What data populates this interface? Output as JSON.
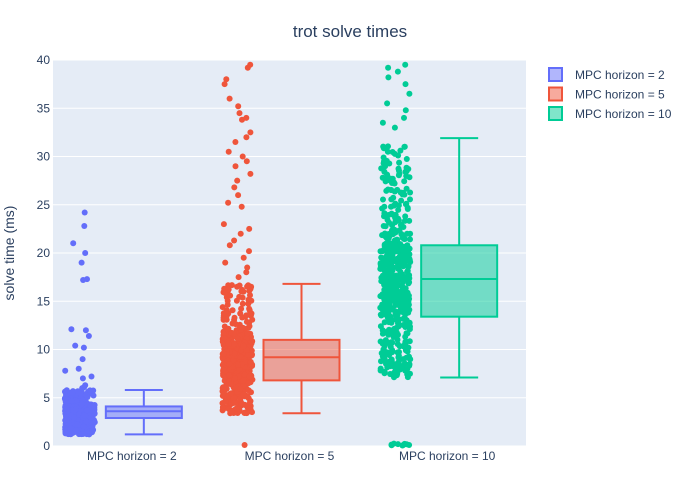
{
  "chart_data": {
    "type": "box",
    "title": "trot solve times",
    "xlabel": "",
    "ylabel": "solve time (ms)",
    "ylim": [
      0,
      40
    ],
    "yticks": [
      0,
      5,
      10,
      15,
      20,
      25,
      30,
      35,
      40
    ],
    "categories": [
      "MPC horizon = 2",
      "MPC horizon = 5",
      "MPC horizon = 10"
    ],
    "grid": true,
    "legend_position": "top-right",
    "background_color": "#e5ecf6",
    "series": [
      {
        "name": "MPC horizon = 2",
        "color": "#636efa",
        "box": {
          "lower_fence": 1.2,
          "q1": 2.9,
          "median": 3.6,
          "q3": 4.1,
          "upper_fence": 5.8
        },
        "outliers": [
          6.0,
          6.1,
          6.3,
          7.0,
          7.2,
          7.8,
          8.0,
          9.0,
          10.2,
          10.4,
          11.4,
          12.0,
          12.1,
          17.2,
          17.3,
          19.0,
          20.0,
          21.0,
          22.8,
          24.2
        ],
        "points_range": [
          1.2,
          5.8
        ],
        "point_count": 420
      },
      {
        "name": "MPC horizon = 5",
        "color": "#ef553b",
        "box": {
          "lower_fence": 3.4,
          "q1": 6.8,
          "median": 9.2,
          "q3": 11.0,
          "upper_fence": 16.8
        },
        "outliers": [
          0.1,
          17.5,
          18.0,
          18.5,
          19.0,
          19.5,
          20.2,
          20.8,
          21.3,
          22.0,
          22.5,
          23.0,
          24.8,
          25.2,
          26.0,
          26.8,
          27.5,
          28.2,
          29.0,
          29.5,
          30.0,
          30.5,
          31.5,
          32.0,
          32.5,
          33.8,
          34.0,
          34.5,
          35.2,
          36.0,
          37.5,
          38.0,
          39.2,
          39.5
        ],
        "points_range": [
          3.4,
          16.8
        ],
        "point_count": 520
      },
      {
        "name": "MPC horizon = 10",
        "color": "#00cc96",
        "box": {
          "lower_fence": 7.1,
          "q1": 13.4,
          "median": 17.3,
          "q3": 20.8,
          "upper_fence": 31.9
        },
        "outliers": [
          0.05,
          0.08,
          0.1,
          0.12,
          0.15,
          0.18,
          0.2,
          0.22,
          0.25,
          33.0,
          33.5,
          34.0,
          34.8,
          35.5,
          36.5,
          37.5,
          38.2,
          38.8,
          39.2,
          39.5
        ],
        "points_range": [
          7.1,
          31.9
        ],
        "point_count": 560
      }
    ]
  }
}
